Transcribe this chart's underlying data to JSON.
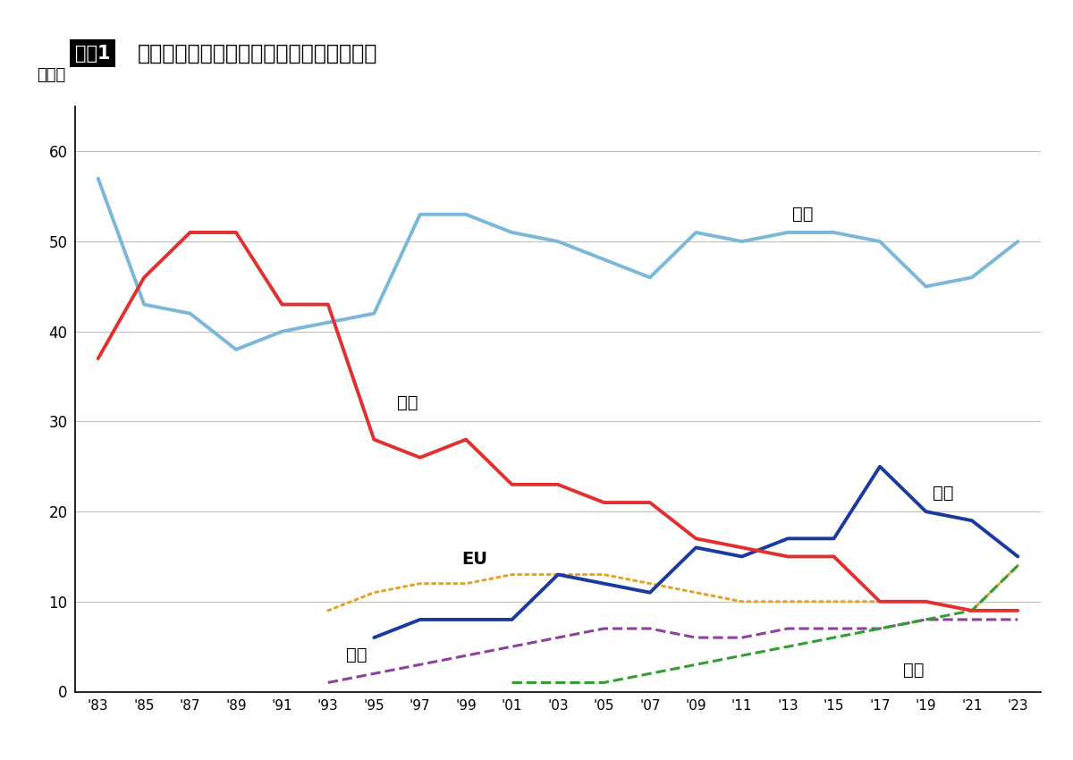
{
  "years": [
    1983,
    1985,
    1987,
    1989,
    1991,
    1993,
    1995,
    1997,
    1999,
    2001,
    2003,
    2005,
    2007,
    2009,
    2011,
    2013,
    2015,
    2017,
    2019,
    2021,
    2023
  ],
  "USA": [
    57,
    43,
    42,
    38,
    40,
    41,
    42,
    53,
    53,
    51,
    50,
    48,
    46,
    51,
    50,
    51,
    51,
    50,
    45,
    46,
    50
  ],
  "Japan": [
    37,
    46,
    51,
    51,
    43,
    43,
    28,
    26,
    28,
    23,
    23,
    21,
    21,
    17,
    16,
    15,
    15,
    10,
    10,
    9,
    9
  ],
  "Korea": [
    null,
    null,
    null,
    null,
    null,
    null,
    6,
    8,
    8,
    8,
    13,
    12,
    11,
    16,
    15,
    17,
    17,
    25,
    20,
    19,
    15
  ],
  "EU": [
    null,
    null,
    null,
    null,
    null,
    9,
    11,
    12,
    12,
    13,
    13,
    13,
    12,
    11,
    10,
    10,
    10,
    10,
    10,
    9,
    14
  ],
  "Taiwan": [
    null,
    null,
    null,
    null,
    null,
    1,
    2,
    3,
    4,
    5,
    6,
    7,
    7,
    6,
    6,
    7,
    7,
    7,
    8,
    8,
    8
  ],
  "China": [
    null,
    null,
    null,
    null,
    null,
    null,
    null,
    null,
    null,
    1,
    1,
    1,
    2,
    3,
    4,
    5,
    6,
    7,
    8,
    9,
    14
  ],
  "title_box": "図表1",
  "title_main": "半導体メーカーの国と地域別の市場シェア",
  "ylabel": "（％）",
  "label_USA": "米国",
  "label_Japan": "日本",
  "label_Korea": "韓国",
  "label_EU": "EU",
  "label_Taiwan": "台湾",
  "label_China": "中国",
  "color_USA": "#7ab8d9",
  "color_Japan": "#e03030",
  "color_Korea": "#1a3a9f",
  "color_EU": "#e8a020",
  "color_Taiwan": "#9040a0",
  "color_China": "#30a030",
  "ylim_min": 0,
  "ylim_max": 65,
  "yticks": [
    0,
    10,
    20,
    30,
    40,
    50,
    60
  ],
  "background_color": "#ffffff",
  "grid_color": "#c0c0c0"
}
